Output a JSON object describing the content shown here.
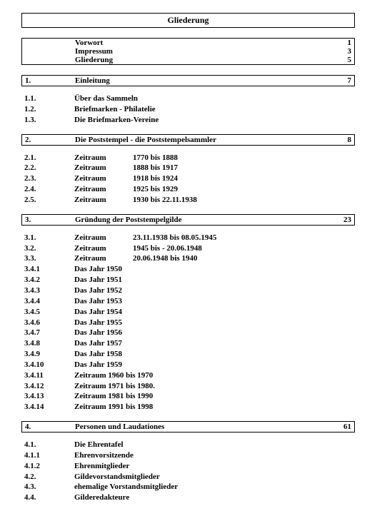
{
  "colors": {
    "text": "#000000",
    "background": "#ffffff",
    "border": "#000000"
  },
  "header": {
    "title": "Gliederung"
  },
  "intro": {
    "rows": [
      {
        "label": "Vorwort",
        "page": "1"
      },
      {
        "label": "Impressum",
        "page": "3"
      },
      {
        "label": "Gliederung",
        "page": "5"
      }
    ]
  },
  "sections": [
    {
      "num": "1.",
      "title": "Einleitung",
      "page": "7",
      "entries": [
        {
          "num": "1.1.",
          "label": "Über das Sammeln"
        },
        {
          "num": "1.2.",
          "label": "Briefmarken - Philatelie"
        },
        {
          "num": "1.3.",
          "label": "Die Briefmarken-Vereine"
        }
      ]
    },
    {
      "num": "2.",
      "title": "Die Poststempel - die Poststempelsammler",
      "page": "8",
      "entries": [
        {
          "num": "2.1.",
          "sub1": "Zeitraum",
          "sub2": "1770 bis 1888"
        },
        {
          "num": "2.2.",
          "sub1": "Zeitraum",
          "sub2": "1888 bis 1917"
        },
        {
          "num": "2.3.",
          "sub1": "Zeitraum",
          "sub2": "1918 bis 1924"
        },
        {
          "num": "2.4.",
          "sub1": "Zeitraum",
          "sub2": "1925 bis 1929"
        },
        {
          "num": "2.5.",
          "sub1": "Zeitraum",
          "sub2": "1930 bis 22.11.1938"
        }
      ]
    },
    {
      "num": "3.",
      "title": "Gründung der Poststempelgilde",
      "page": "23",
      "entries": [
        {
          "num": "3.1.",
          "sub1": "Zeitraum",
          "sub2": "23.11.1938 bis 08.05.1945"
        },
        {
          "num": "3.2.",
          "sub1": "Zeitraum",
          "sub2": "1945  bis - 20.06.1948"
        },
        {
          "num": "3.3.",
          "sub1": "Zeitraum",
          "sub2": "20.06.1948 bis 1940"
        },
        {
          "num": "3.4.1",
          "label": "Das Jahr 1950"
        },
        {
          "num": "3.4.2",
          "label": "Das Jahr 1951"
        },
        {
          "num": "3.4.3",
          "label": "Das Jahr 1952"
        },
        {
          "num": "3.4.4",
          "label": "Das Jahr 1953"
        },
        {
          "num": "3.4.5",
          "label": "Das Jahr 1954"
        },
        {
          "num": "3.4.6",
          "label": "Das Jahr 1955"
        },
        {
          "num": "3.4.7",
          "label": "Das Jahr 1956"
        },
        {
          "num": "3.4.8",
          "label": "Das Jahr 1957"
        },
        {
          "num": "3.4.9",
          "label": "Das Jahr 1958"
        },
        {
          "num": "3.4.10",
          "label": "Das Jahr 1959"
        },
        {
          "num": "3.4.11",
          "label": "Zeitraum 1960 bis 1970"
        },
        {
          "num": "3.4.12",
          "label": "Zeitraum 1971 bis 1980."
        },
        {
          "num": "3.4.13",
          "label": "Zeitraum 1981 bis 1990"
        },
        {
          "num": "3.4.14",
          "label": "Zeitraum 1991 bis 1998"
        }
      ]
    },
    {
      "num": "4.",
      "title": "Personen und Laudationes",
      "page": "61",
      "entries": [
        {
          "num": "4.1.",
          "label": "Die Ehrentafel"
        },
        {
          "num": "4.1.1",
          "label": "Ehrenvorsitzende"
        },
        {
          "num": "4.1.2",
          "label": "Ehrenmitglieder"
        },
        {
          "num": "4.2.",
          "label": "Gildevorstandsmitglieder"
        },
        {
          "num": "4.3.",
          "label": "ehemalige Vorstandsmitglieder"
        },
        {
          "num": "4.4.",
          "label": "Gilderedakteure"
        }
      ]
    }
  ]
}
